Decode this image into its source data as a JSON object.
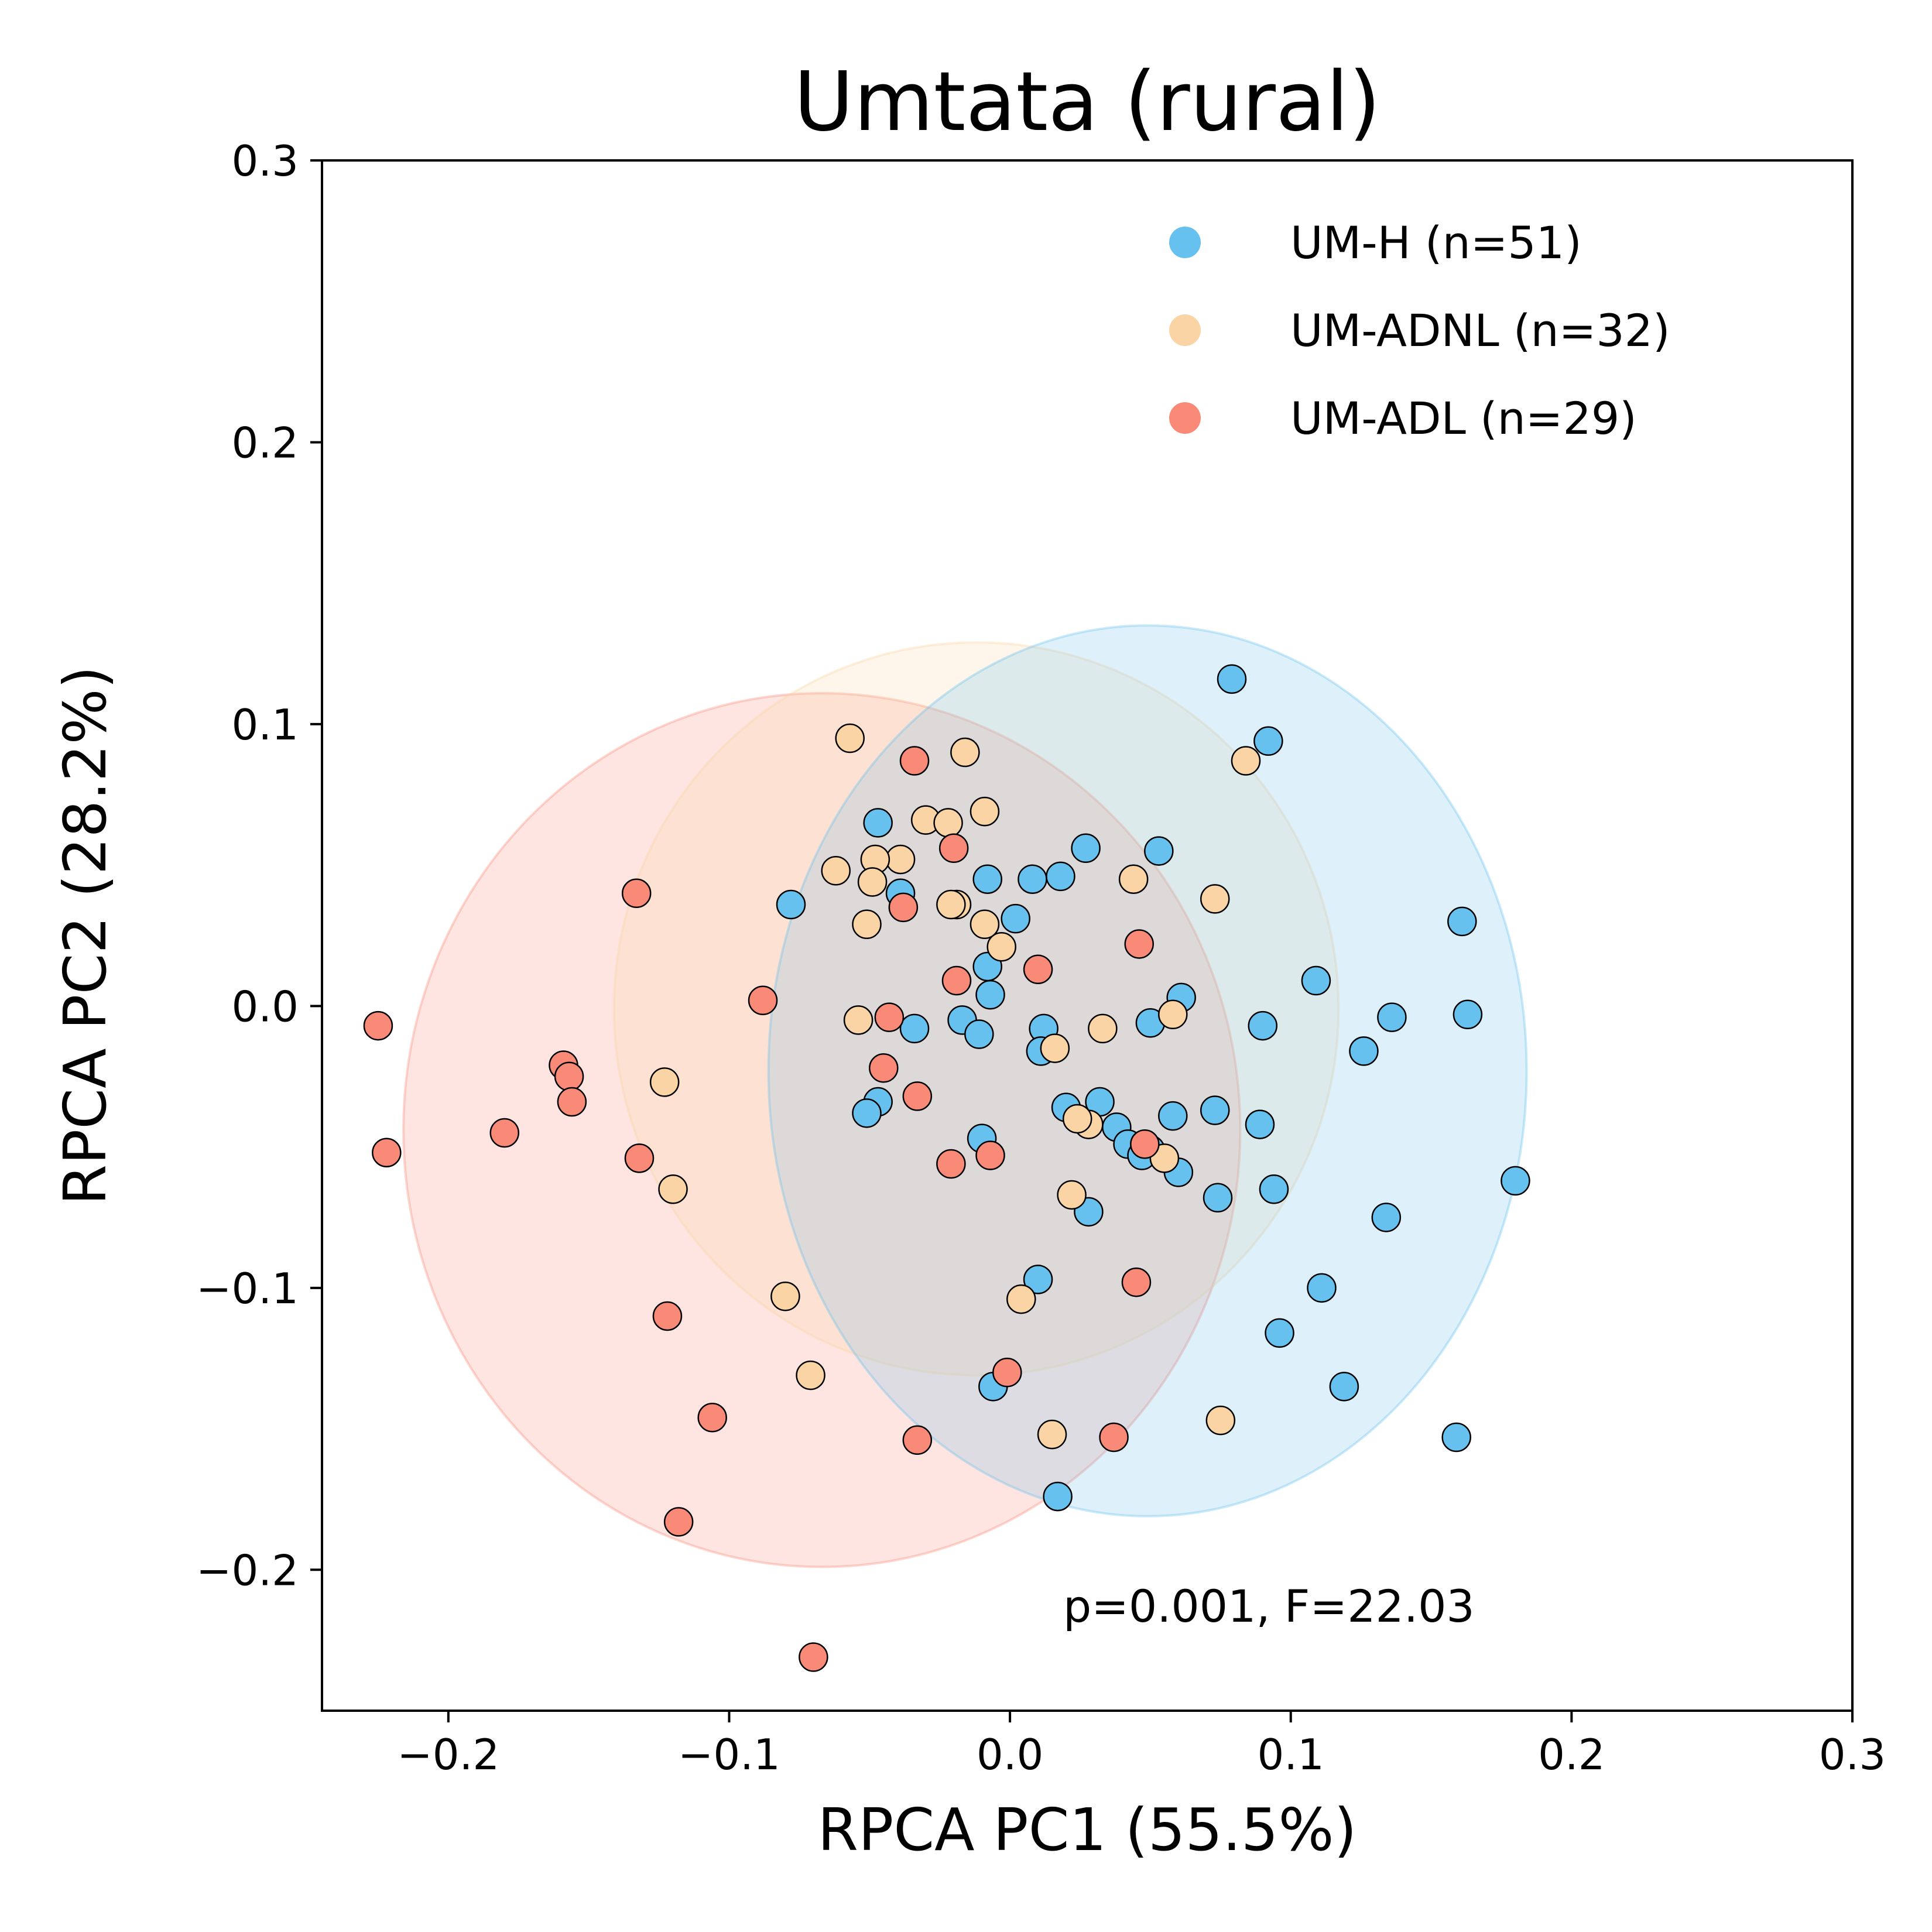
{
  "chart_data": {
    "type": "scatter",
    "title": "Umtata (rural)",
    "xlabel": "RPCA PC1 (55.5%)",
    "ylabel": "RPCA PC2 (28.2%)",
    "xlim": [
      -0.245,
      0.3
    ],
    "ylim": [
      -0.25,
      0.3
    ],
    "xticks": [
      -0.2,
      -0.1,
      0.0,
      0.1,
      0.2,
      0.3
    ],
    "xtick_labels": [
      "−0.2",
      "−0.1",
      "0.0",
      "0.1",
      "0.2",
      "0.3"
    ],
    "yticks": [
      -0.2,
      -0.1,
      0.0,
      0.1,
      0.2,
      0.3
    ],
    "ytick_labels": [
      "−0.2",
      "−0.1",
      "0.0",
      "0.1",
      "0.2",
      "0.3"
    ],
    "grid": false,
    "legend_position": "top-right",
    "annotation": "p=0.001, F=22.03",
    "series": [
      {
        "name": "UM-H (n=51)",
        "color": "#67c1ee",
        "ellipse": {
          "cx": 0.049,
          "cy": -0.023,
          "rx": 0.135,
          "ry": 0.158
        },
        "points": [
          [
            0.079,
            0.116
          ],
          [
            0.092,
            0.094
          ],
          [
            -0.047,
            0.065
          ],
          [
            0.027,
            0.056
          ],
          [
            0.053,
            0.055
          ],
          [
            -0.008,
            0.045
          ],
          [
            0.008,
            0.045
          ],
          [
            0.018,
            0.046
          ],
          [
            -0.039,
            0.04
          ],
          [
            -0.078,
            0.036
          ],
          [
            0.002,
            0.031
          ],
          [
            0.161,
            0.03
          ],
          [
            -0.008,
            0.014
          ],
          [
            0.109,
            0.009
          ],
          [
            0.061,
            0.003
          ],
          [
            -0.007,
            0.004
          ],
          [
            0.136,
            -0.004
          ],
          [
            0.163,
            -0.003
          ],
          [
            -0.017,
            -0.005
          ],
          [
            0.05,
            -0.006
          ],
          [
            -0.034,
            -0.008
          ],
          [
            0.09,
            -0.007
          ],
          [
            -0.011,
            -0.01
          ],
          [
            0.012,
            -0.008
          ],
          [
            0.011,
            -0.016
          ],
          [
            0.126,
            -0.016
          ],
          [
            -0.047,
            -0.034
          ],
          [
            -0.051,
            -0.038
          ],
          [
            0.02,
            -0.036
          ],
          [
            0.032,
            -0.034
          ],
          [
            0.058,
            -0.039
          ],
          [
            0.073,
            -0.037
          ],
          [
            0.038,
            -0.043
          ],
          [
            0.089,
            -0.042
          ],
          [
            -0.01,
            -0.047
          ],
          [
            0.042,
            -0.049
          ],
          [
            0.05,
            -0.051
          ],
          [
            0.06,
            -0.059
          ],
          [
            0.074,
            -0.068
          ],
          [
            0.094,
            -0.065
          ],
          [
            0.18,
            -0.062
          ],
          [
            0.028,
            -0.073
          ],
          [
            0.134,
            -0.075
          ],
          [
            0.01,
            -0.097
          ],
          [
            0.111,
            -0.1
          ],
          [
            0.096,
            -0.116
          ],
          [
            -0.006,
            -0.135
          ],
          [
            0.119,
            -0.135
          ],
          [
            0.159,
            -0.153
          ],
          [
            0.017,
            -0.174
          ],
          [
            0.047,
            -0.053
          ]
        ]
      },
      {
        "name": "UM-ADNL (n=32)",
        "color": "#fad4a4",
        "ellipse": {
          "cx": -0.012,
          "cy": -0.001,
          "rx": 0.129,
          "ry": 0.13
        },
        "points": [
          [
            -0.057,
            0.095
          ],
          [
            -0.016,
            0.09
          ],
          [
            0.084,
            0.087
          ],
          [
            -0.009,
            0.069
          ],
          [
            -0.03,
            0.066
          ],
          [
            -0.022,
            0.065
          ],
          [
            -0.039,
            0.052
          ],
          [
            -0.062,
            0.048
          ],
          [
            -0.048,
            0.052
          ],
          [
            -0.049,
            0.044
          ],
          [
            0.044,
            0.045
          ],
          [
            0.073,
            0.038
          ],
          [
            -0.019,
            0.036
          ],
          [
            -0.021,
            0.036
          ],
          [
            -0.009,
            0.029
          ],
          [
            -0.051,
            0.029
          ],
          [
            -0.054,
            -0.005
          ],
          [
            0.058,
            -0.003
          ],
          [
            0.033,
            -0.008
          ],
          [
            0.016,
            -0.015
          ],
          [
            -0.123,
            -0.027
          ],
          [
            0.028,
            -0.042
          ],
          [
            0.055,
            -0.054
          ],
          [
            -0.12,
            -0.065
          ],
          [
            0.022,
            -0.067
          ],
          [
            -0.08,
            -0.103
          ],
          [
            0.004,
            -0.104
          ],
          [
            -0.071,
            -0.131
          ],
          [
            0.075,
            -0.147
          ],
          [
            0.015,
            -0.152
          ],
          [
            0.024,
            -0.04
          ],
          [
            -0.003,
            0.021
          ]
        ]
      },
      {
        "name": "UM-ADL (n=29)",
        "color": "#f98a78",
        "ellipse": {
          "cx": -0.067,
          "cy": -0.044,
          "rx": 0.149,
          "ry": 0.155
        },
        "points": [
          [
            -0.034,
            0.087
          ],
          [
            -0.02,
            0.056
          ],
          [
            -0.133,
            0.04
          ],
          [
            -0.038,
            0.035
          ],
          [
            0.046,
            0.022
          ],
          [
            0.01,
            0.013
          ],
          [
            -0.019,
            0.009
          ],
          [
            -0.088,
            0.002
          ],
          [
            -0.225,
            -0.007
          ],
          [
            -0.043,
            -0.004
          ],
          [
            -0.159,
            -0.021
          ],
          [
            -0.157,
            -0.025
          ],
          [
            -0.045,
            -0.022
          ],
          [
            -0.156,
            -0.034
          ],
          [
            -0.033,
            -0.032
          ],
          [
            -0.18,
            -0.045
          ],
          [
            -0.222,
            -0.052
          ],
          [
            -0.132,
            -0.054
          ],
          [
            -0.021,
            -0.056
          ],
          [
            -0.007,
            -0.053
          ],
          [
            0.048,
            -0.049
          ],
          [
            0.045,
            -0.098
          ],
          [
            -0.122,
            -0.11
          ],
          [
            -0.001,
            -0.13
          ],
          [
            -0.106,
            -0.146
          ],
          [
            -0.033,
            -0.154
          ],
          [
            0.037,
            -0.153
          ],
          [
            -0.118,
            -0.183
          ],
          [
            -0.07,
            -0.231
          ]
        ]
      }
    ]
  }
}
